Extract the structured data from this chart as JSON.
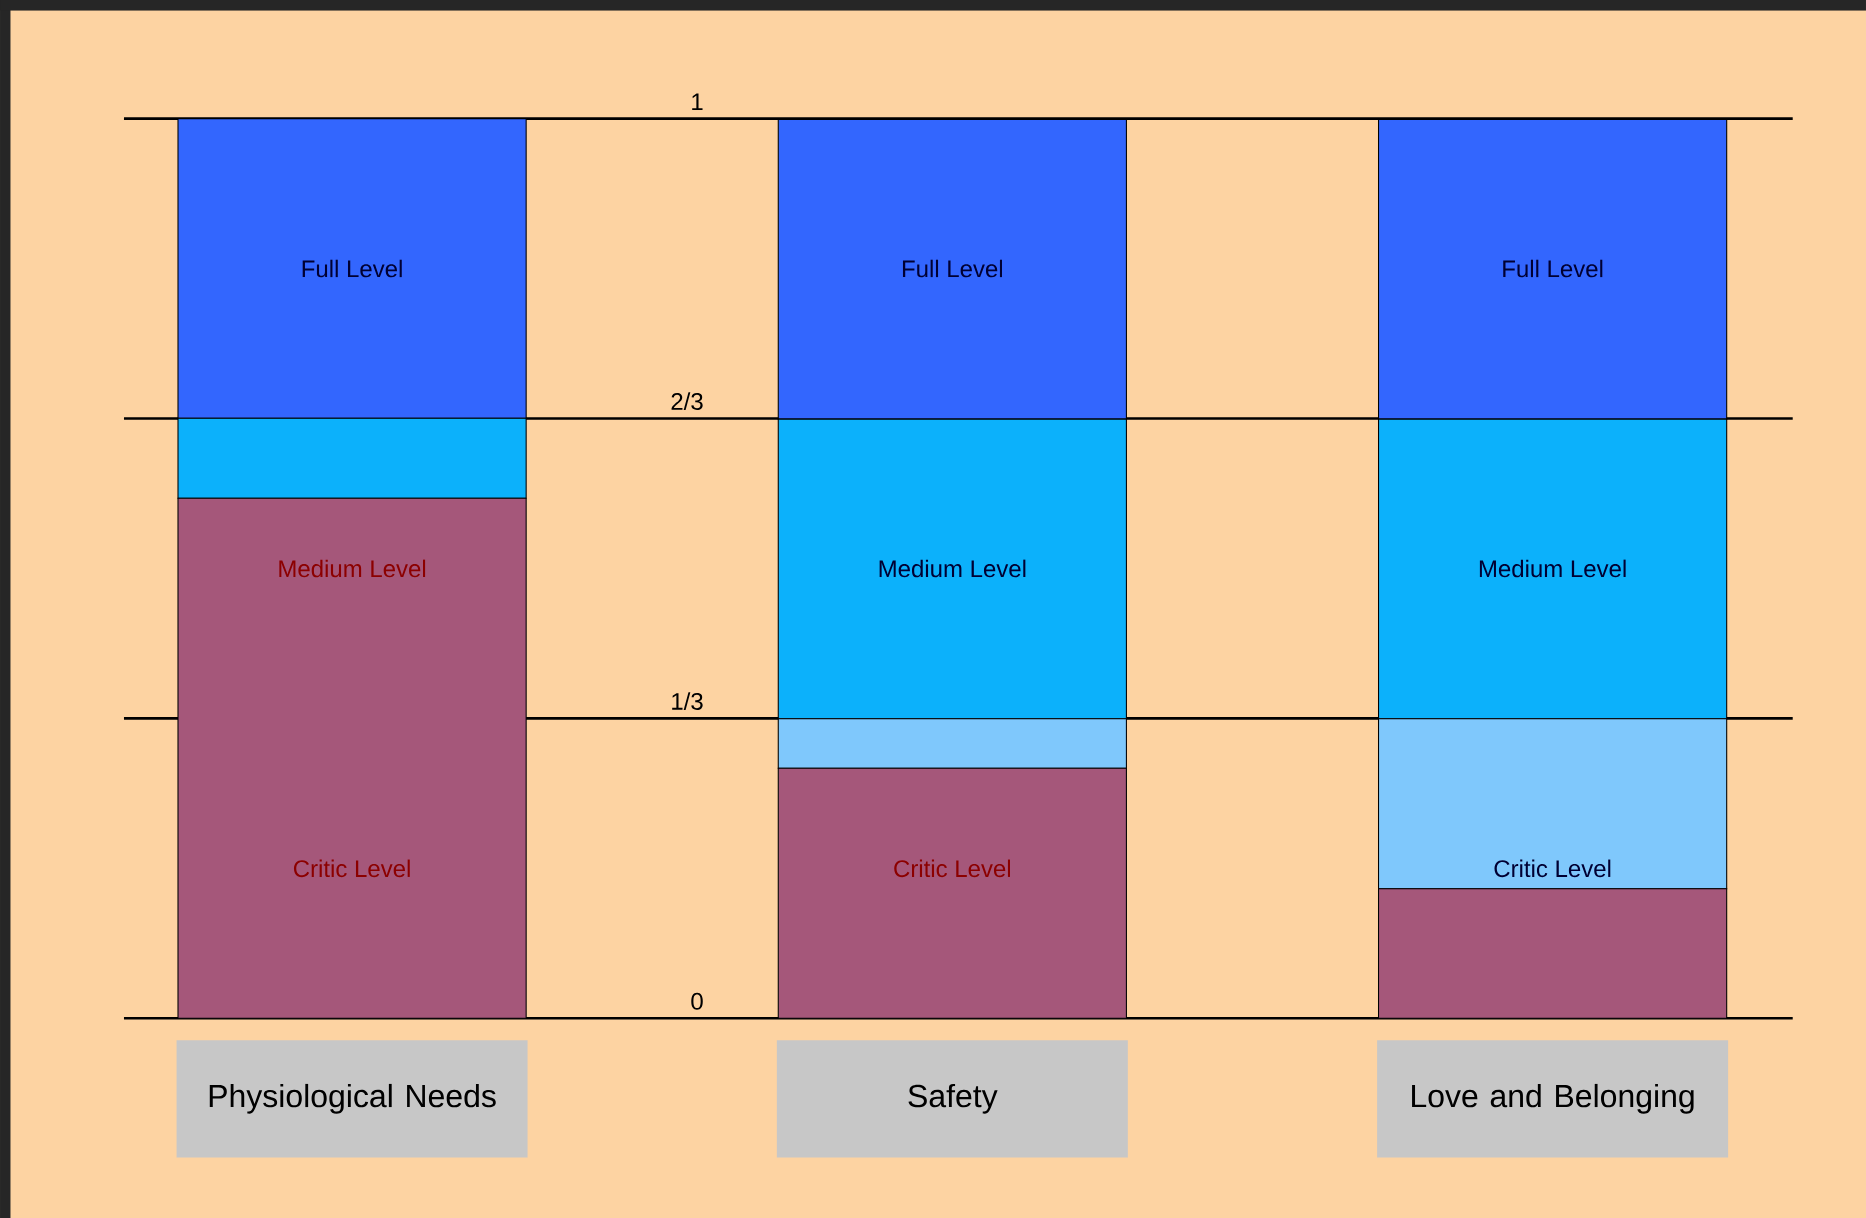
{
  "chart_data": {
    "type": "bar",
    "stacked": true,
    "categories": [
      "Physiological Needs",
      "Safety",
      "Love and Belonging"
    ],
    "series": [
      {
        "color": "#a5577a",
        "values": [
          0.578,
          0.278,
          0.144
        ]
      },
      {
        "color": "#7fc8fc",
        "values": [
          0,
          0.055,
          0.189
        ]
      },
      {
        "color": "#0cb1fb",
        "values": [
          0.089,
          0.333,
          0.333
        ]
      },
      {
        "color": "#3366fe",
        "values": [
          0.333,
          0.333,
          0.333
        ]
      }
    ],
    "ylim": [
      0,
      1
    ],
    "yticks": [
      0,
      {
        "value": 0.3333,
        "label": "1/3"
      },
      {
        "value": 0.6667,
        "label": "2/3"
      },
      1
    ],
    "grid": "y",
    "annotations": [
      "Full Level",
      "Medium Level",
      "Critic Level",
      "Full Level",
      "Medium Level",
      "Critic Level",
      "Full Level",
      "Medium Level",
      "Critic Level"
    ]
  }
}
